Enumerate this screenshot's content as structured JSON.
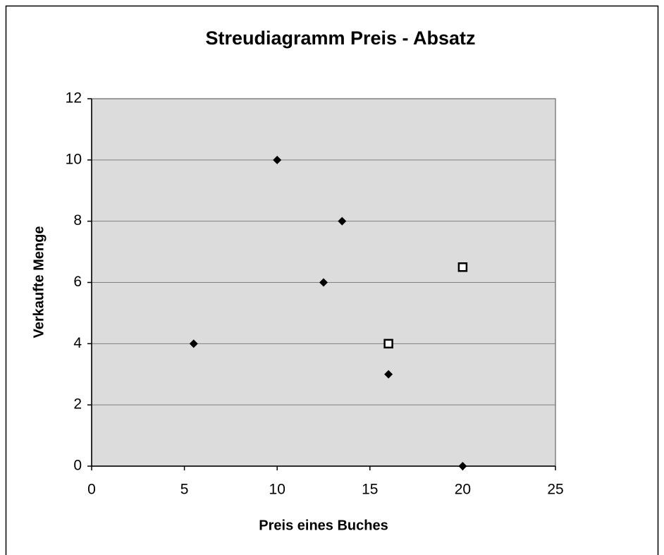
{
  "chart_data": {
    "type": "scatter",
    "title": "Streudiagramm Preis - Absatz",
    "x_label": "Preis eines Buches",
    "y_label": "Verkaufte Menge",
    "series": [
      {
        "color": "#000000",
        "marker": "diamond",
        "x": [
          5.5,
          10,
          12.5,
          13.5,
          16,
          20
        ],
        "values": [
          4,
          10,
          6,
          8,
          3,
          0
        ]
      },
      {
        "color": "#000000",
        "marker": "hollow-square",
        "x": [
          16,
          20
        ],
        "values": [
          4,
          6.5
        ]
      }
    ],
    "xlim": [
      0,
      25
    ],
    "xticks": [
      0,
      5,
      10,
      15,
      20,
      25
    ],
    "ylim": [
      0,
      12
    ],
    "yticks": [
      0,
      2,
      4,
      6,
      8,
      10,
      12
    ],
    "grid": true,
    "plot_background": "#dcdcdc"
  }
}
